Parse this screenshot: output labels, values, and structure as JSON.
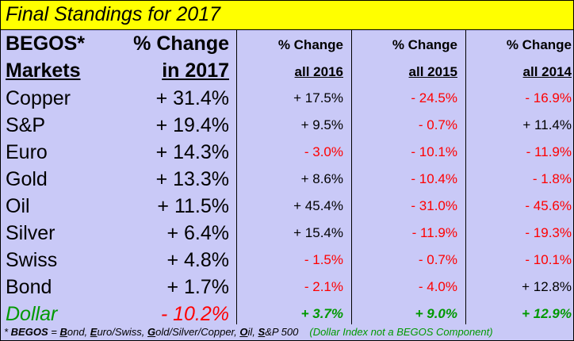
{
  "title": "Final Standings for 2017",
  "header": {
    "markets_line1": "BEGOS*",
    "markets_line2": "Markets",
    "y2017_line1": "% Change",
    "y2017_line2": "in 2017",
    "y2016_line1": "% Change",
    "y2016_line2": "all 2016",
    "y2015_line1": "% Change",
    "y2015_line2": "all 2015",
    "y2014_line1": "% Change",
    "y2014_line2": "all 2014"
  },
  "colors": {
    "positive": "#000000",
    "negative": "#ff0000",
    "dollar": "#009900",
    "title_bg": "#ffff00",
    "table_bg": "#c9c9f7"
  },
  "rows": [
    {
      "market": "Copper",
      "y2017": "+ 31.4%",
      "y2016": "+ 17.5%",
      "y2015": "- 24.5%",
      "y2014": "- 16.9%"
    },
    {
      "market": "S&P",
      "y2017": "+ 19.4%",
      "y2016": "+ 9.5%",
      "y2015": "- 0.7%",
      "y2014": "+ 11.4%"
    },
    {
      "market": "Euro",
      "y2017": "+ 14.3%",
      "y2016": "- 3.0%",
      "y2015": "- 10.1%",
      "y2014": "- 11.9%"
    },
    {
      "market": "Gold",
      "y2017": "+ 13.3%",
      "y2016": "+ 8.6%",
      "y2015": "- 10.4%",
      "y2014": "- 1.8%"
    },
    {
      "market": "Oil",
      "y2017": "+ 11.5%",
      "y2016": "+ 45.4%",
      "y2015": "- 31.0%",
      "y2014": "- 45.6%"
    },
    {
      "market": "Silver",
      "y2017": "+ 6.4%",
      "y2016": "+ 15.4%",
      "y2015": "- 11.9%",
      "y2014": "- 19.3%"
    },
    {
      "market": "Swiss",
      "y2017": "+ 4.8%",
      "y2016": "- 1.5%",
      "y2015": "- 0.7%",
      "y2014": "- 10.1%"
    },
    {
      "market": "Bond",
      "y2017": "+ 1.7%",
      "y2016": "- 2.1%",
      "y2015": "- 4.0%",
      "y2014": "+ 12.8%"
    },
    {
      "market": "Dollar",
      "y2017": "- 10.2%",
      "y2016": "+ 3.7%",
      "y2015": "+ 9.0%",
      "y2014": "+ 12.9%"
    }
  ],
  "footnote": {
    "star": "* ",
    "begos": "BEGOS",
    "eq": " = ",
    "b1": "B",
    "t1": "ond, ",
    "b2": "E",
    "t2": "uro/Swiss, ",
    "b3": "G",
    "t3": "old/Silver/Copper, ",
    "b4": "O",
    "t4": "il, ",
    "b5": "S",
    "t5": "&P 500",
    "note": "(Dollar Index not a BEGOS Component)"
  }
}
